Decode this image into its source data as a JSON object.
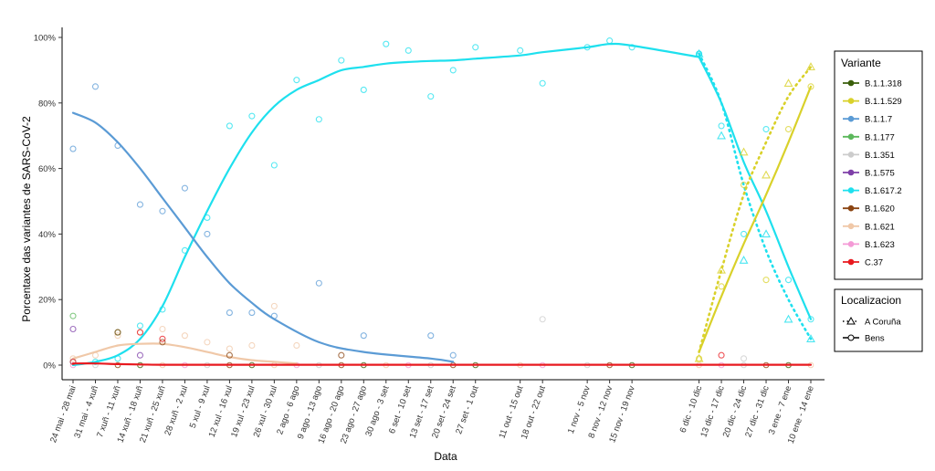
{
  "chart_data": {
    "type": "line",
    "title": "",
    "xlabel": "Data",
    "ylabel": "Porcentaxe das variantes de SARS-CoV-2",
    "ylim": [
      0,
      100
    ],
    "yticks": [
      "0%",
      "20%",
      "40%",
      "60%",
      "80%",
      "100%"
    ],
    "grid": false,
    "legend_placement": "right",
    "categories": [
      "24 mai - 28 mai",
      "31 mai - 4 xuñ",
      "7 xuñ - 11 xuñ",
      "14 xuñ - 18 xuñ",
      "21 xuñ - 25 xuñ",
      "28 xuñ - 2 xul",
      "5 xul - 9 xul",
      "12 xul - 16 xul",
      "19 xul - 23 xul",
      "26 xul - 30 xul",
      "2 ago - 6 ago",
      "9 ago - 13 ago",
      "16 ago - 20 ago",
      "23 ago - 27 ago",
      "30 ago - 3 set",
      "6 set - 10 set",
      "13 set - 17 set",
      "20 set - 24 set",
      "27 set - 1 out",
      "11 out - 15 out",
      "18 out - 22 out",
      "1 nov - 5 nov",
      "8 nov - 12 nov",
      "15 nov - 19 nov",
      "6 dic - 10 dic",
      "13 dic - 17 dic",
      "20 dic - 24 dic",
      "27 dic - 31 dic",
      "3 ene - 7 ene",
      "10 ene - 14 ene"
    ],
    "category_week": [
      0,
      1,
      2,
      3,
      4,
      5,
      6,
      7,
      8,
      9,
      10,
      11,
      12,
      13,
      14,
      15,
      16,
      17,
      18,
      20,
      21,
      23,
      24,
      25,
      28,
      29,
      30,
      31,
      32,
      33
    ],
    "legend_variante": {
      "title": "Variante",
      "items": [
        {
          "label": "B.1.1.318",
          "color": "#3a5f0b"
        },
        {
          "label": "B.1.1.529",
          "color": "#d9d12a"
        },
        {
          "label": "B.1.1.7",
          "color": "#5b9bd5"
        },
        {
          "label": "B.1.177",
          "color": "#5cb85c"
        },
        {
          "label": "B.1.351",
          "color": "#cccccc"
        },
        {
          "label": "B.1.575",
          "color": "#7e3fa8"
        },
        {
          "label": "B.1.617.2",
          "color": "#1ee0ee"
        },
        {
          "label": "B.1.620",
          "color": "#8b4513"
        },
        {
          "label": "B.1.621",
          "color": "#f0c8a8"
        },
        {
          "label": "B.1.623",
          "color": "#f49ad6"
        },
        {
          "label": "C.37",
          "color": "#e8191f"
        }
      ]
    },
    "legend_localizacion": {
      "title": "Localizacion",
      "items": [
        {
          "label": "A Coruña",
          "style": "dotted-triangle"
        },
        {
          "label": "Bens",
          "style": "solid-circle"
        }
      ]
    },
    "series": [
      {
        "name": "B.1.617.2",
        "location": "Bens",
        "color": "#1ee0ee",
        "x": [
          0,
          1,
          2,
          3,
          4,
          5,
          6,
          7,
          8,
          9,
          10,
          11,
          12,
          13,
          14,
          15,
          16,
          17,
          18,
          20,
          21,
          23,
          24,
          25,
          28
        ],
        "values": [
          1,
          1,
          2,
          12,
          17,
          35,
          45,
          73,
          76,
          61,
          87,
          75,
          93,
          84,
          98,
          96,
          82,
          90,
          97,
          96,
          86,
          97,
          99,
          97,
          95
        ],
        "trend": [
          0,
          1,
          3,
          8,
          18,
          33,
          47,
          60,
          71,
          79,
          84,
          87,
          90,
          91,
          92,
          92.5,
          92.8,
          93,
          93.5,
          94.5,
          95.5,
          97,
          98,
          97.5,
          94
        ]
      },
      {
        "name": "B.1.617.2",
        "location": "A Coruña",
        "color": "#1ee0ee",
        "x": [
          28,
          29,
          30,
          31,
          32,
          33
        ],
        "values": [
          95,
          70,
          32,
          40,
          14,
          8
        ],
        "trend": [
          95,
          80,
          55,
          35,
          20,
          8
        ]
      },
      {
        "name": "B.1.617.2",
        "location": "Bens",
        "color": "#1ee0ee",
        "segment": "late",
        "x": [
          28,
          29,
          30,
          31,
          32,
          33
        ],
        "values": [
          95,
          73,
          40,
          72,
          26,
          14
        ],
        "trend": [
          94,
          80,
          62,
          47,
          30,
          14
        ]
      },
      {
        "name": "B.1.1.529",
        "location": "Bens",
        "color": "#d9d12a",
        "x": [
          28,
          29,
          30,
          31,
          32,
          33
        ],
        "values": [
          2,
          24,
          55,
          26,
          72,
          85
        ],
        "trend": [
          4,
          21,
          37,
          52,
          68,
          85
        ]
      },
      {
        "name": "B.1.1.529",
        "location": "A Coruña",
        "color": "#d9d12a",
        "x": [
          28,
          29,
          30,
          31,
          32,
          33
        ],
        "values": [
          2,
          29,
          65,
          58,
          86,
          91
        ],
        "trend": [
          4,
          29,
          52,
          68,
          82,
          91
        ]
      },
      {
        "name": "B.1.1.7",
        "location": "Bens",
        "color": "#5b9bd5",
        "x": [
          0,
          1,
          2,
          3,
          4,
          5,
          6,
          7,
          8,
          9,
          11,
          13,
          16,
          17
        ],
        "values": [
          66,
          85,
          67,
          49,
          47,
          54,
          40,
          16,
          16,
          15,
          25,
          9,
          9,
          3
        ],
        "trend": [
          77,
          74,
          68,
          60,
          51,
          42,
          33,
          25,
          19,
          14,
          7,
          4,
          2,
          1
        ]
      },
      {
        "name": "B.1.621",
        "location": "Bens",
        "color": "#f0c8a8",
        "x": [
          0,
          1,
          2,
          3,
          4,
          5,
          6,
          7,
          8,
          9,
          10
        ],
        "values": [
          2,
          3,
          9,
          10,
          11,
          9,
          7,
          5,
          6,
          18,
          6
        ],
        "trend": [
          2,
          4,
          6,
          6.5,
          6.5,
          5.5,
          4,
          2.5,
          1.5,
          1,
          0.5
        ]
      },
      {
        "name": "B.1.177",
        "location": "Bens",
        "color": "#5cb85c",
        "x": [
          0,
          2
        ],
        "values": [
          15,
          10
        ]
      },
      {
        "name": "B.1.575",
        "location": "Bens",
        "color": "#7e3fa8",
        "x": [
          0,
          3
        ],
        "values": [
          11,
          3
        ]
      },
      {
        "name": "B.1.620",
        "location": "Bens",
        "color": "#8b4513",
        "x": [
          2,
          4,
          7,
          12
        ],
        "values": [
          10,
          7,
          3,
          3
        ]
      },
      {
        "name": "B.1.351",
        "location": "Bens",
        "color": "#cccccc",
        "x": [
          21,
          30
        ],
        "values": [
          14,
          2
        ]
      },
      {
        "name": "C.37",
        "location": "Bens",
        "color": "#e8191f",
        "x": [
          0,
          3,
          4,
          29
        ],
        "values": [
          1,
          10,
          8,
          3
        ],
        "trend": [
          0.5,
          0.5,
          0.3,
          0.2,
          0.1,
          0.1,
          0.1,
          0.1,
          0.1,
          0.1,
          0.1,
          0.1,
          0.1,
          0.1,
          0.1,
          0.1,
          0.1,
          0.1,
          0.1,
          0.1,
          0.1,
          0.1,
          0.1,
          0.1,
          0.1,
          0.1,
          0.1,
          0.1,
          0.1,
          0.1
        ]
      }
    ]
  }
}
